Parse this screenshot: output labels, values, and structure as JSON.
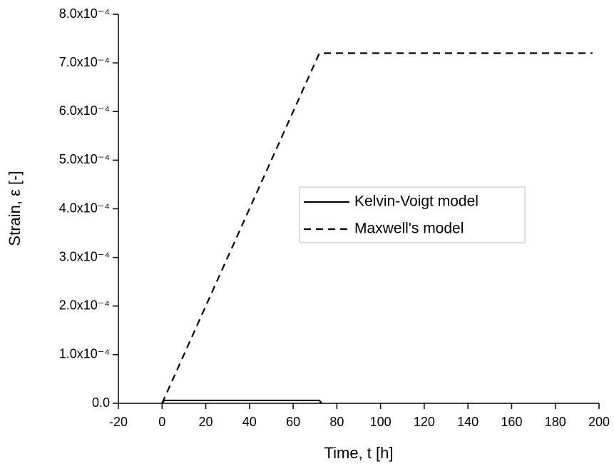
{
  "chart_data": {
    "type": "line",
    "x_label": "Time, t [h]",
    "y_label": "Strain, ε [-]",
    "xlim": [
      -20,
      200
    ],
    "xticks": [
      -20,
      0,
      20,
      40,
      60,
      80,
      100,
      120,
      140,
      160,
      180,
      200
    ],
    "ylim": [
      0,
      0.0008
    ],
    "yticks": [
      {
        "value": 0,
        "label": "0.0"
      },
      {
        "value": 0.0001,
        "label": "1.0x10⁻⁴"
      },
      {
        "value": 0.0002,
        "label": "2.0x10⁻⁴"
      },
      {
        "value": 0.0003,
        "label": "3.0x10⁻⁴"
      },
      {
        "value": 0.0004,
        "label": "4.0x10⁻⁴"
      },
      {
        "value": 0.0005,
        "label": "5.0x10⁻⁴"
      },
      {
        "value": 0.0006,
        "label": "6.0x10⁻⁴"
      },
      {
        "value": 0.0007,
        "label": "7.0x10⁻⁴"
      },
      {
        "value": 0.0008,
        "label": "8.0x10⁻⁴"
      }
    ],
    "legend_position": "center",
    "series": [
      {
        "name": "Kelvin-Voigt model",
        "color": "#000000",
        "style": "solid",
        "x": [
          0,
          1,
          72,
          73
        ],
        "values": [
          0,
          6e-06,
          6e-06,
          0
        ]
      },
      {
        "name": "Maxwell's model",
        "color": "#000000",
        "style": "dashed",
        "x": [
          0,
          72,
          197
        ],
        "values": [
          0,
          0.00072,
          0.00072
        ]
      }
    ]
  }
}
